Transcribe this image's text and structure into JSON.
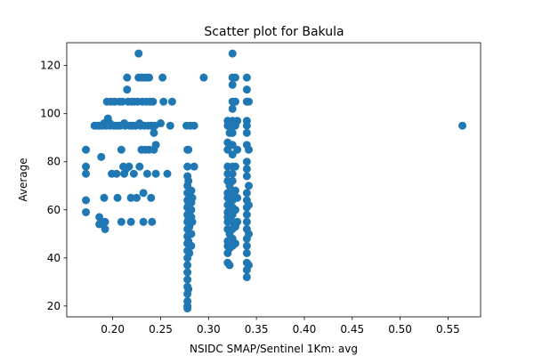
{
  "chart_data": {
    "type": "scatter",
    "title": "Scatter plot for Bakula",
    "xlabel": "NSIDC SMAP/Sentinel 1Km: avg",
    "ylabel": "Average",
    "xlim": [
      0.152,
      0.584
    ],
    "ylim": [
      15.5,
      129.5
    ],
    "xticks": [
      0.2,
      0.25,
      0.3,
      0.35,
      0.4,
      0.45,
      0.5,
      0.55
    ],
    "xtick_labels": [
      "0.20",
      "0.25",
      "0.30",
      "0.35",
      "0.40",
      "0.45",
      "0.50",
      "0.55"
    ],
    "yticks": [
      20,
      40,
      60,
      80,
      100,
      120
    ],
    "ytick_labels": [
      "20",
      "40",
      "60",
      "80",
      "100",
      "120"
    ],
    "grid": false,
    "marker_color": "#1f77b4",
    "series": [
      {
        "points": [
          [
            0.172,
            85
          ],
          [
            0.172,
            78
          ],
          [
            0.172,
            75
          ],
          [
            0.172,
            64
          ],
          [
            0.172,
            59
          ],
          [
            0.181,
            95
          ],
          [
            0.184,
            95
          ],
          [
            0.186,
            95
          ],
          [
            0.186,
            57
          ],
          [
            0.186,
            54
          ],
          [
            0.188,
            82
          ],
          [
            0.189,
            95
          ],
          [
            0.191,
            96
          ],
          [
            0.191,
            65
          ],
          [
            0.192,
            55
          ],
          [
            0.192,
            52
          ],
          [
            0.193,
            95
          ],
          [
            0.194,
            105
          ],
          [
            0.195,
            98
          ],
          [
            0.195,
            96
          ],
          [
            0.197,
            96
          ],
          [
            0.197,
            95
          ],
          [
            0.198,
            105
          ],
          [
            0.199,
            75
          ],
          [
            0.201,
            95
          ],
          [
            0.202,
            105
          ],
          [
            0.203,
            95
          ],
          [
            0.204,
            75
          ],
          [
            0.205,
            65
          ],
          [
            0.206,
            95
          ],
          [
            0.207,
            105
          ],
          [
            0.208,
            95
          ],
          [
            0.209,
            85
          ],
          [
            0.209,
            55
          ],
          [
            0.21,
            105
          ],
          [
            0.211,
            78
          ],
          [
            0.212,
            96
          ],
          [
            0.212,
            75
          ],
          [
            0.213,
            95
          ],
          [
            0.214,
            77
          ],
          [
            0.215,
            115
          ],
          [
            0.215,
            110
          ],
          [
            0.216,
            105
          ],
          [
            0.217,
            78
          ],
          [
            0.218,
            95
          ],
          [
            0.219,
            65
          ],
          [
            0.219,
            55
          ],
          [
            0.22,
            105
          ],
          [
            0.221,
            95
          ],
          [
            0.222,
            75
          ],
          [
            0.223,
            105
          ],
          [
            0.224,
            95
          ],
          [
            0.225,
            65
          ],
          [
            0.226,
            105
          ],
          [
            0.227,
            125
          ],
          [
            0.227,
            115
          ],
          [
            0.228,
            96
          ],
          [
            0.228,
            78
          ],
          [
            0.229,
            95
          ],
          [
            0.23,
            115
          ],
          [
            0.23,
            85
          ],
          [
            0.231,
            105
          ],
          [
            0.232,
            67
          ],
          [
            0.232,
            55
          ],
          [
            0.233,
            115
          ],
          [
            0.233,
            95
          ],
          [
            0.234,
            85
          ],
          [
            0.235,
            105
          ],
          [
            0.236,
            115
          ],
          [
            0.236,
            75
          ],
          [
            0.237,
            95
          ],
          [
            0.238,
            115
          ],
          [
            0.238,
            85
          ],
          [
            0.239,
            105
          ],
          [
            0.24,
            95
          ],
          [
            0.24,
            65
          ],
          [
            0.241,
            55
          ],
          [
            0.241,
            95
          ],
          [
            0.242,
            105
          ],
          [
            0.243,
            92
          ],
          [
            0.243,
            85
          ],
          [
            0.244,
            95
          ],
          [
            0.245,
            87
          ],
          [
            0.245,
            75
          ],
          [
            0.25,
            96
          ],
          [
            0.252,
            115
          ],
          [
            0.253,
            105
          ],
          [
            0.257,
            75
          ],
          [
            0.26,
            95
          ],
          [
            0.262,
            105
          ],
          [
            0.277,
            95
          ],
          [
            0.278,
            85
          ],
          [
            0.278,
            78
          ],
          [
            0.278,
            74
          ],
          [
            0.278,
            70
          ],
          [
            0.278,
            67
          ],
          [
            0.278,
            64
          ],
          [
            0.278,
            61
          ],
          [
            0.278,
            58
          ],
          [
            0.278,
            55
          ],
          [
            0.278,
            52
          ],
          [
            0.278,
            49
          ],
          [
            0.278,
            46
          ],
          [
            0.278,
            43
          ],
          [
            0.278,
            40
          ],
          [
            0.278,
            37
          ],
          [
            0.278,
            34
          ],
          [
            0.278,
            31
          ],
          [
            0.278,
            28
          ],
          [
            0.278,
            25
          ],
          [
            0.278,
            22
          ],
          [
            0.278,
            20
          ],
          [
            0.278,
            19
          ],
          [
            0.279,
            85
          ],
          [
            0.279,
            72
          ],
          [
            0.279,
            62
          ],
          [
            0.279,
            56
          ],
          [
            0.279,
            47
          ],
          [
            0.279,
            27
          ],
          [
            0.28,
            65
          ],
          [
            0.28,
            59
          ],
          [
            0.28,
            53
          ],
          [
            0.28,
            42
          ],
          [
            0.281,
            95
          ],
          [
            0.282,
            68
          ],
          [
            0.282,
            63
          ],
          [
            0.282,
            60
          ],
          [
            0.282,
            57
          ],
          [
            0.282,
            50
          ],
          [
            0.282,
            45
          ],
          [
            0.283,
            65
          ],
          [
            0.283,
            55
          ],
          [
            0.285,
            95
          ],
          [
            0.285,
            78
          ],
          [
            0.295,
            115
          ],
          [
            0.32,
            97
          ],
          [
            0.32,
            95
          ],
          [
            0.32,
            88
          ],
          [
            0.32,
            85
          ],
          [
            0.32,
            78
          ],
          [
            0.32,
            75
          ],
          [
            0.32,
            72
          ],
          [
            0.32,
            67
          ],
          [
            0.32,
            65
          ],
          [
            0.32,
            62
          ],
          [
            0.32,
            59
          ],
          [
            0.32,
            57
          ],
          [
            0.32,
            55
          ],
          [
            0.32,
            52
          ],
          [
            0.32,
            47
          ],
          [
            0.32,
            45
          ],
          [
            0.32,
            42
          ],
          [
            0.32,
            38
          ],
          [
            0.322,
            92
          ],
          [
            0.322,
            70
          ],
          [
            0.322,
            60
          ],
          [
            0.322,
            50
          ],
          [
            0.322,
            44
          ],
          [
            0.322,
            37
          ],
          [
            0.325,
            125
          ],
          [
            0.325,
            115
          ],
          [
            0.325,
            112
          ],
          [
            0.325,
            105
          ],
          [
            0.325,
            102
          ],
          [
            0.325,
            97
          ],
          [
            0.325,
            95
          ],
          [
            0.325,
            92
          ],
          [
            0.325,
            87
          ],
          [
            0.325,
            83
          ],
          [
            0.325,
            78
          ],
          [
            0.325,
            75
          ],
          [
            0.325,
            72
          ],
          [
            0.325,
            67
          ],
          [
            0.325,
            64
          ],
          [
            0.325,
            61
          ],
          [
            0.325,
            58
          ],
          [
            0.325,
            55
          ],
          [
            0.325,
            52
          ],
          [
            0.325,
            48
          ],
          [
            0.325,
            45
          ],
          [
            0.328,
            115
          ],
          [
            0.328,
            105
          ],
          [
            0.328,
            95
          ],
          [
            0.328,
            78
          ],
          [
            0.328,
            68
          ],
          [
            0.328,
            60
          ],
          [
            0.328,
            53
          ],
          [
            0.328,
            46
          ],
          [
            0.33,
            97
          ],
          [
            0.33,
            85
          ],
          [
            0.33,
            65
          ],
          [
            0.33,
            55
          ],
          [
            0.34,
            115
          ],
          [
            0.34,
            110
          ],
          [
            0.34,
            105
          ],
          [
            0.34,
            97
          ],
          [
            0.34,
            95
          ],
          [
            0.34,
            92
          ],
          [
            0.34,
            87
          ],
          [
            0.34,
            80
          ],
          [
            0.34,
            77
          ],
          [
            0.34,
            74
          ],
          [
            0.34,
            67
          ],
          [
            0.34,
            64
          ],
          [
            0.34,
            61
          ],
          [
            0.34,
            58
          ],
          [
            0.34,
            55
          ],
          [
            0.34,
            52
          ],
          [
            0.34,
            48
          ],
          [
            0.34,
            45
          ],
          [
            0.34,
            42
          ],
          [
            0.34,
            38
          ],
          [
            0.34,
            35
          ],
          [
            0.34,
            32
          ],
          [
            0.342,
            105
          ],
          [
            0.342,
            85
          ],
          [
            0.342,
            70
          ],
          [
            0.342,
            62
          ],
          [
            0.342,
            50
          ],
          [
            0.342,
            37
          ],
          [
            0.565,
            95
          ]
        ]
      }
    ]
  }
}
